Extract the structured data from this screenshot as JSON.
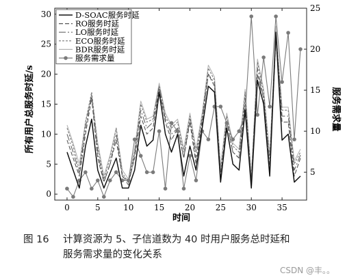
{
  "chart_data": {
    "type": "line",
    "title": "",
    "xlabel": "时间",
    "ylabel_left": "所有用户总服务时延/s",
    "ylabel_right": "服务需求量",
    "xlim": [
      -2,
      39
    ],
    "ylim_left": [
      -1,
      31
    ],
    "ylim_right": [
      1.6,
      25
    ],
    "x_ticks": [
      "0",
      "5",
      "10",
      "15",
      "20",
      "25",
      "30",
      "35"
    ],
    "y_ticks_left": [
      "0",
      "5",
      "10",
      "15",
      "20",
      "25",
      "30"
    ],
    "y_ticks_right": [
      "5",
      "10",
      "15",
      "20",
      "25"
    ],
    "legend_position": "top-left",
    "x": [
      0,
      1,
      2,
      3,
      4,
      5,
      6,
      7,
      8,
      9,
      10,
      11,
      12,
      13,
      14,
      15,
      16,
      17,
      18,
      19,
      20,
      21,
      22,
      23,
      24,
      25,
      26,
      27,
      28,
      29,
      30,
      31,
      32,
      33,
      34,
      35,
      36,
      37,
      38
    ],
    "series": [
      {
        "name": "D-SOAC服务时延",
        "axis": "left",
        "color": "#111111",
        "dash": "",
        "values": [
          7,
          4,
          1,
          8,
          12.5,
          4,
          1,
          3.5,
          6,
          1,
          1,
          4,
          11.5,
          8,
          9,
          17,
          10,
          7,
          10,
          3,
          8,
          4,
          11,
          18,
          17,
          2,
          11,
          5,
          4,
          14,
          1,
          19,
          15,
          3,
          27,
          9,
          10,
          2,
          3
        ]
      },
      {
        "name": "RO服务时延",
        "axis": "left",
        "color": "#555555",
        "dash": "6,3",
        "values": [
          9,
          6,
          3,
          10,
          16,
          6,
          2,
          5,
          9,
          3,
          2,
          6,
          13,
          10,
          11,
          17.5,
          12,
          9,
          11,
          6,
          12,
          5,
          12,
          20,
          18,
          3,
          12,
          7,
          6,
          15,
          2,
          20,
          16,
          4,
          26,
          12,
          12,
          3,
          6
        ]
      },
      {
        "name": "LO服务时延",
        "axis": "left",
        "color": "#666666",
        "dash": "10,3,2,3",
        "values": [
          10,
          7,
          3.5,
          11,
          16.5,
          7,
          2,
          5,
          10,
          3,
          1.5,
          6.5,
          14,
          11,
          12,
          18,
          12.5,
          10,
          11,
          6,
          12.5,
          6,
          12.5,
          20,
          18.5,
          3,
          12,
          7,
          6,
          16,
          2,
          21,
          16,
          5,
          26.5,
          13,
          13,
          4,
          6.5
        ]
      },
      {
        "name": "ECO服务时延",
        "axis": "left",
        "color": "#777777",
        "dash": "3,2",
        "values": [
          11,
          8,
          4,
          12,
          17,
          8,
          2.5,
          6,
          11,
          3.5,
          2,
          7,
          15,
          12,
          12.5,
          18,
          13,
          11,
          12,
          7,
          13,
          7,
          13,
          21,
          19,
          4,
          13,
          8,
          7,
          17,
          2.5,
          22,
          17,
          6,
          27,
          14,
          14,
          5,
          7
        ]
      },
      {
        "name": "BDR服务时延",
        "axis": "left",
        "color": "#b3b3b3",
        "dash": "",
        "values": [
          11.5,
          8.5,
          5,
          12,
          16.5,
          8.5,
          3,
          6.5,
          11,
          4,
          2.5,
          7.5,
          15.5,
          12.5,
          13,
          18.5,
          13.5,
          11.5,
          12.5,
          7.5,
          13.5,
          7.5,
          13.5,
          21.5,
          19.5,
          4.5,
          13.5,
          8.5,
          7.5,
          17.5,
          3,
          22.5,
          17.5,
          6.5,
          28,
          14.5,
          14.5,
          5.5,
          7.5
        ]
      },
      {
        "name": "服务需求量",
        "axis": "right",
        "color": "#7a7a7a",
        "dash": "",
        "marker": "circle",
        "values": [
          3,
          2,
          4,
          5,
          3,
          4,
          2,
          4,
          5,
          4,
          4,
          9,
          7,
          5,
          5,
          10,
          3,
          11,
          10,
          3,
          7,
          4,
          10,
          9,
          13,
          13,
          11,
          9,
          10,
          12,
          24,
          12,
          19,
          13,
          24,
          16,
          22,
          9,
          20
        ]
      }
    ]
  },
  "caption": {
    "figure_number": "图 16",
    "line1": "计算资源为 5、子信道数为 40 时用户服务总时延和",
    "line2": "服务需求量的变化关系"
  },
  "watermark": "CSDN @丰。。"
}
